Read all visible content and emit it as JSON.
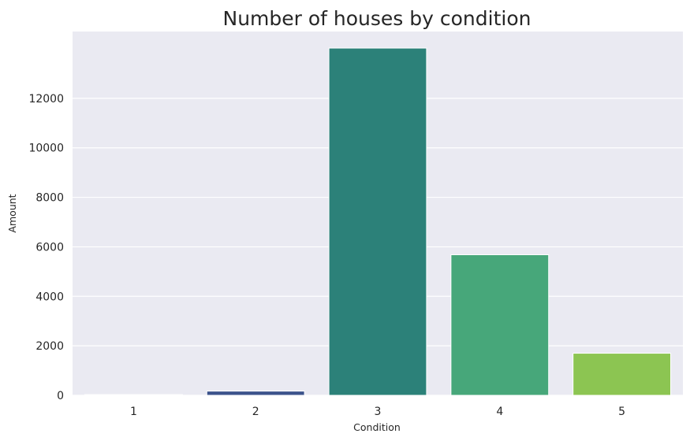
{
  "chart_data": {
    "type": "bar",
    "title": "Number of houses by condition",
    "xlabel": "Condition",
    "ylabel": "Amount",
    "categories": [
      "1",
      "2",
      "3",
      "4",
      "5"
    ],
    "values": [
      30,
      170,
      14030,
      5680,
      1700
    ],
    "bar_colors": [
      "#482878",
      "#3b528b",
      "#2c8179",
      "#47a77a",
      "#8cc552"
    ],
    "yticks": [
      0,
      2000,
      4000,
      6000,
      8000,
      10000,
      12000
    ],
    "ylim": [
      0,
      14700
    ],
    "grid": true,
    "background": "#eaeaf2",
    "legend": "none"
  }
}
